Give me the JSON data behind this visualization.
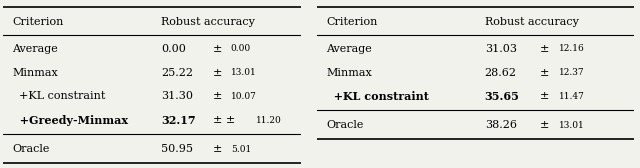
{
  "table1": {
    "header": [
      "Criterion",
      "Robust accuracy"
    ],
    "rows": [
      {
        "criterion": "Average",
        "value": "0.00",
        "pm": "0.00",
        "bold": false,
        "indent": false,
        "double_pm": false
      },
      {
        "criterion": "Minmax",
        "value": "25.22",
        "pm": "13.01",
        "bold": false,
        "indent": false,
        "double_pm": false
      },
      {
        "criterion": "+KL constraint",
        "value": "31.30",
        "pm": "10.07",
        "bold": false,
        "indent": true,
        "double_pm": false
      },
      {
        "criterion": "+Greedy-Minmax",
        "value": "32.17",
        "pm": "11.20",
        "bold": true,
        "indent": true,
        "double_pm": true
      }
    ],
    "oracle": {
      "criterion": "Oracle",
      "value": "50.95",
      "pm": "5.01"
    }
  },
  "table2": {
    "header": [
      "Criterion",
      "Robust accuracy"
    ],
    "rows": [
      {
        "criterion": "Average",
        "value": "31.03",
        "pm": "12.16",
        "bold": false,
        "indent": false,
        "double_pm": false
      },
      {
        "criterion": "Minmax",
        "value": "28.62",
        "pm": "12.37",
        "bold": false,
        "indent": false,
        "double_pm": false
      },
      {
        "criterion": "+KL constraint",
        "value": "35.65",
        "pm": "11.47",
        "bold": true,
        "indent": true,
        "double_pm": false
      }
    ],
    "oracle": {
      "criterion": "Oracle",
      "value": "38.26",
      "pm": "13.01"
    }
  },
  "bg_color": "#f2f2ed",
  "font_size": 8.0,
  "small_font_size": 6.5
}
